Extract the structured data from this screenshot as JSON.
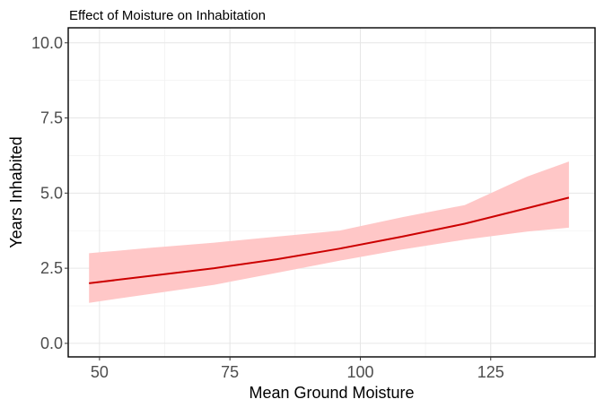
{
  "chart_data": {
    "type": "line",
    "title": "Effect of Moisture on Inhabitation",
    "xlabel": "Mean Ground Moisture",
    "ylabel": "Years Inhabited",
    "xlim": [
      44,
      145
    ],
    "ylim": [
      -0.45,
      10.5
    ],
    "xticks": [
      50,
      75,
      100,
      125
    ],
    "xtick_labels": [
      "50",
      "75",
      "100",
      "125"
    ],
    "yticks": [
      0,
      2.5,
      5,
      7.5,
      10
    ],
    "ytick_labels": [
      "0.0",
      "2.5",
      "5.0",
      "7.5",
      "10.0"
    ],
    "grid": true,
    "line_color": "#cc0000",
    "band_color": "#ffc7c7",
    "series": [
      {
        "x": [
          48,
          60,
          72,
          84,
          96,
          108,
          120,
          132,
          140
        ],
        "y": [
          2.0,
          2.25,
          2.5,
          2.8,
          3.15,
          3.55,
          3.98,
          4.5,
          4.85
        ],
        "lower": [
          1.35,
          1.65,
          1.95,
          2.35,
          2.75,
          3.12,
          3.45,
          3.72,
          3.85
        ],
        "upper": [
          3.0,
          3.18,
          3.35,
          3.55,
          3.75,
          4.2,
          4.6,
          5.55,
          6.05
        ]
      }
    ]
  }
}
